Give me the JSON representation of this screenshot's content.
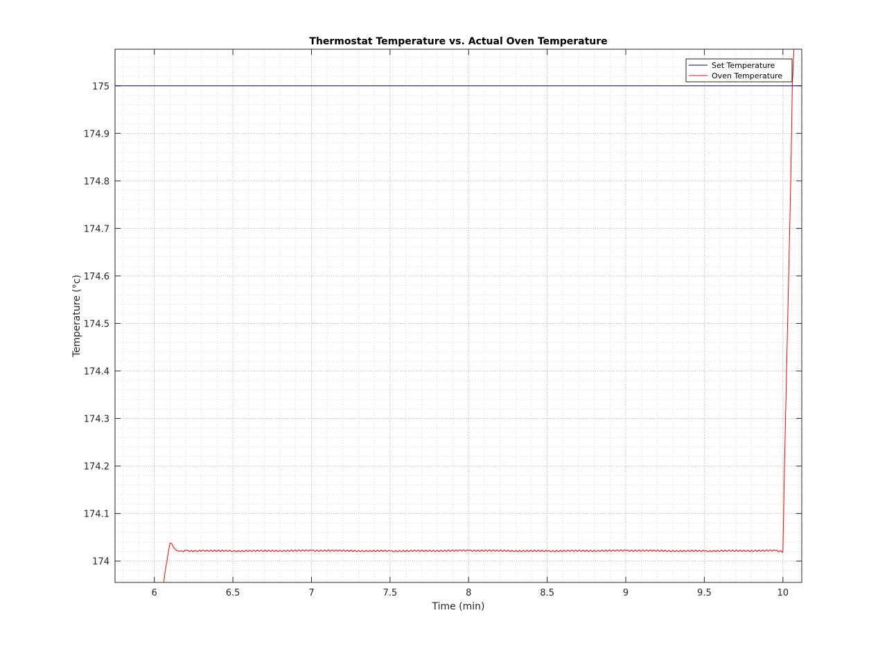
{
  "chart_data": {
    "type": "line",
    "title": "Thermostat Temperature vs. Actual Oven Temperature",
    "xlabel": "Time (min)",
    "ylabel": "Temperature (°c)",
    "xlim": [
      5.75,
      10.12
    ],
    "ylim": [
      173.955,
      175.077
    ],
    "xticks": [
      6,
      6.5,
      7,
      7.5,
      8,
      8.5,
      9,
      9.5,
      10
    ],
    "xtick_labels": [
      "6",
      "6.5",
      "7",
      "7.5",
      "8",
      "8.5",
      "9",
      "9.5",
      "10"
    ],
    "yticks": [
      174,
      174.1,
      174.2,
      174.3,
      174.4,
      174.5,
      174.6,
      174.7,
      174.8,
      174.9,
      175
    ],
    "ytick_labels": [
      "174",
      "174.1",
      "174.2",
      "174.3",
      "174.4",
      "174.5",
      "174.6",
      "174.7",
      "174.8",
      "174.9",
      "175"
    ],
    "grid": "major and minor, dotted",
    "legend_location": "top-right",
    "series": [
      {
        "name": "Set Temperature",
        "color": "#000080",
        "x": [
          5.75,
          10.12
        ],
        "y": [
          175,
          175
        ]
      },
      {
        "name": "Oven Temperature",
        "color": "#ff0000",
        "x": [
          6.06,
          6.07,
          6.08,
          6.09,
          6.1,
          6.11,
          6.12,
          6.14,
          6.16,
          6.2,
          6.25,
          6.3,
          6.5,
          7,
          7.5,
          8,
          8.5,
          9,
          9.5,
          9.95,
          10.0,
          10.01,
          10.03,
          10.05,
          10.06,
          10.07
        ],
        "y": [
          173.955,
          173.98,
          174.0,
          174.02,
          174.038,
          174.037,
          174.03,
          174.022,
          174.02,
          174.022,
          174.021,
          174.022,
          174.021,
          174.022,
          174.021,
          174.022,
          174.021,
          174.022,
          174.021,
          174.022,
          174.02,
          174.2,
          174.5,
          174.8,
          175.0,
          175.077
        ],
        "noise_amplitude": 0.002
      }
    ]
  }
}
